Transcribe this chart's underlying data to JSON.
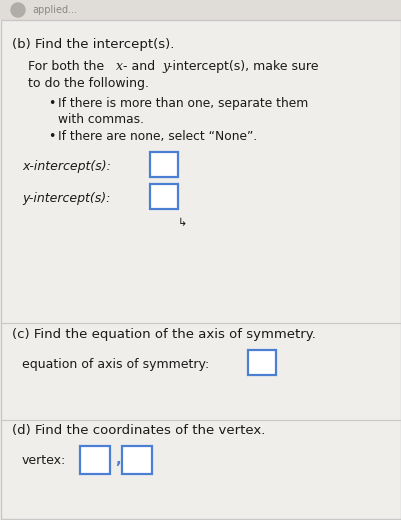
{
  "bg_color": "#f0eeeb",
  "section_bg": "#f7f6f3",
  "border_color": "#c8c8c8",
  "text_color": "#1a1a1a",
  "blue_box_color": "#4a7fd4",
  "title_b": "(b) Find the intercept(s).",
  "para_line1": "For both the x- and y-intercept(s), make sure",
  "para_line2": "to do the following.",
  "bullet1a": "If there is more than one, separate them",
  "bullet1b": "with commas.",
  "bullet2": "If there are none, select “None”.",
  "x_label": "x-intercept(s):",
  "y_label": "y-intercept(s):",
  "title_c": "(c) Find the equation of the axis of symmetry.",
  "axis_label": "equation of axis of symmetry:",
  "title_d": "(d) Find the coordinates of the vertex.",
  "vertex_label": "vertex:",
  "header_color": "#e0ddd8",
  "font_size_title": 9.5,
  "font_size_body": 9.0,
  "font_size_small": 8.8
}
